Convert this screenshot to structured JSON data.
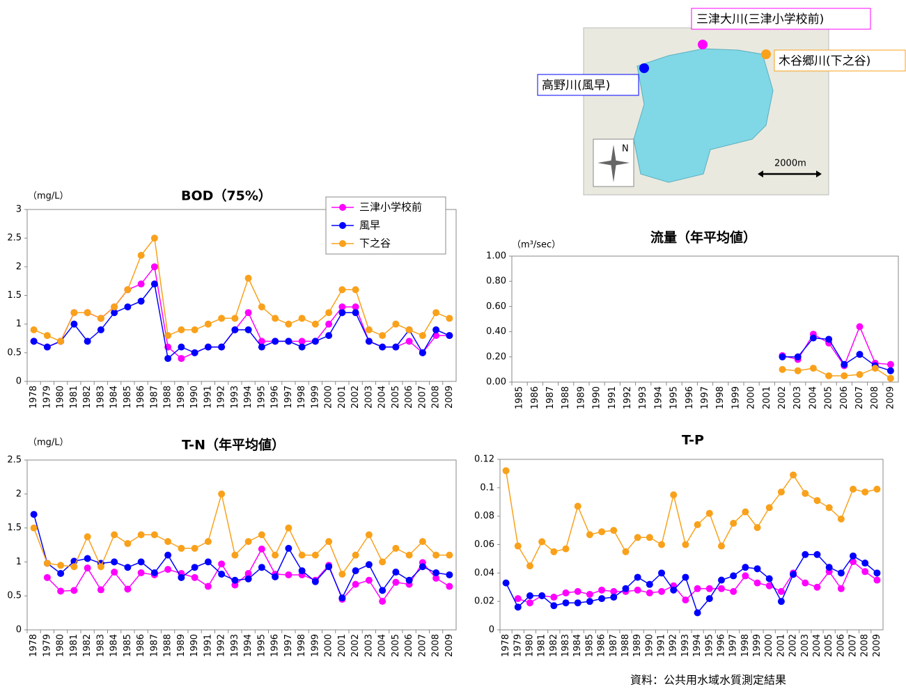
{
  "map": {
    "labels": [
      "三津大川(三津小学校前)",
      "木谷郷川(下之谷)",
      "高野川(風早)"
    ],
    "scale": "2000m",
    "north": "N"
  },
  "source": "資料：公共用水域水質測定結果",
  "chart_data": [
    {
      "type": "line",
      "title": "BOD（75%）",
      "y_label": "（mg/L）",
      "legend": "upper right",
      "categories": [
        "1978",
        "1979",
        "1980",
        "1981",
        "1982",
        "1983",
        "1984",
        "1985",
        "1986",
        "1987",
        "1988",
        "1989",
        "1990",
        "1991",
        "1992",
        "1993",
        "1994",
        "1995",
        "1996",
        "1997",
        "1998",
        "1999",
        "2000",
        "2001",
        "2002",
        "2003",
        "2004",
        "2005",
        "2006",
        "2007",
        "2008",
        "2009"
      ],
      "ylim": [
        0,
        3
      ],
      "yticks": [
        0,
        0.5,
        1,
        1.5,
        2,
        2.5,
        3
      ],
      "series": [
        {
          "name": "三津小学校前",
          "color": "#ff00ff",
          "values": [
            0.7,
            0.6,
            0.7,
            1.2,
            1.2,
            1.1,
            1.3,
            1.6,
            1.7,
            2.0,
            0.6,
            0.4,
            0.5,
            0.6,
            0.6,
            0.9,
            1.2,
            0.7,
            0.7,
            0.7,
            0.7,
            0.7,
            1.0,
            1.3,
            1.3,
            0.7,
            0.6,
            0.6,
            0.7,
            0.5,
            0.8,
            0.8
          ]
        },
        {
          "name": "風早",
          "color": "#0000ff",
          "values": [
            0.7,
            0.6,
            0.7,
            1.0,
            0.7,
            0.9,
            1.2,
            1.3,
            1.4,
            1.7,
            0.4,
            0.6,
            0.5,
            0.6,
            0.6,
            0.9,
            0.9,
            0.6,
            0.7,
            0.7,
            0.6,
            0.7,
            0.8,
            1.2,
            1.2,
            0.7,
            0.6,
            0.6,
            0.9,
            0.5,
            0.9,
            0.8
          ]
        },
        {
          "name": "下之谷",
          "color": "#f9a11b",
          "values": [
            0.9,
            0.8,
            0.7,
            1.2,
            1.2,
            1.1,
            1.3,
            1.6,
            2.2,
            2.5,
            0.8,
            0.9,
            0.9,
            1.0,
            1.1,
            1.1,
            1.8,
            1.3,
            1.1,
            1.0,
            1.1,
            1.0,
            1.2,
            1.6,
            1.6,
            0.9,
            0.8,
            1.0,
            0.9,
            0.8,
            1.2,
            1.1
          ]
        }
      ]
    },
    {
      "type": "line",
      "title": "流量（年平均値）",
      "y_label": "（m³/sec）",
      "categories": [
        "1985",
        "1986",
        "1987",
        "1988",
        "1989",
        "1990",
        "1991",
        "1992",
        "1993",
        "1994",
        "1995",
        "1996",
        "1997",
        "1998",
        "1999",
        "2000",
        "2001",
        "2002",
        "2003",
        "2004",
        "2005",
        "2006",
        "2007",
        "2008",
        "2009"
      ],
      "ylim": [
        0,
        1
      ],
      "yticks": [
        {
          "value": 0,
          "label": "0.00"
        },
        {
          "value": 0.2,
          "label": "0.20"
        },
        {
          "value": 0.4,
          "label": "0.40"
        },
        {
          "value": 0.6,
          "label": "0.60"
        },
        {
          "value": 0.8,
          "label": "0.80"
        },
        {
          "value": 1,
          "label": "1.00"
        }
      ],
      "series": [
        {
          "color": "#ff00ff",
          "values": [
            null,
            null,
            null,
            null,
            null,
            null,
            null,
            null,
            null,
            null,
            null,
            null,
            null,
            null,
            null,
            null,
            null,
            0.21,
            0.18,
            0.38,
            0.31,
            0.13,
            0.44,
            0.15,
            0.14
          ]
        },
        {
          "color": "#0000ff",
          "values": [
            null,
            null,
            null,
            null,
            null,
            null,
            null,
            null,
            null,
            null,
            null,
            null,
            null,
            null,
            null,
            null,
            null,
            0.2,
            0.2,
            0.35,
            0.34,
            0.14,
            0.22,
            0.13,
            0.09
          ]
        },
        {
          "color": "#f9a11b",
          "values": [
            null,
            null,
            null,
            null,
            null,
            null,
            null,
            null,
            null,
            null,
            null,
            null,
            null,
            null,
            null,
            null,
            null,
            0.1,
            0.09,
            0.11,
            0.05,
            0.05,
            0.06,
            0.11,
            0.03
          ]
        }
      ]
    },
    {
      "type": "line",
      "title": "T-N（年平均値）",
      "y_label": "（mg/L）",
      "categories": [
        "1978",
        "1979",
        "1980",
        "1981",
        "1982",
        "1983",
        "1984",
        "1985",
        "1986",
        "1987",
        "1988",
        "1989",
        "1990",
        "1991",
        "1992",
        "1993",
        "1994",
        "1995",
        "1996",
        "1997",
        "1998",
        "1999",
        "2000",
        "2001",
        "2002",
        "2003",
        "2004",
        "2005",
        "2006",
        "2007",
        "2008",
        "2009"
      ],
      "ylim": [
        0,
        2.5
      ],
      "yticks": [
        0,
        0.5,
        1,
        1.5,
        2,
        2.5
      ],
      "series": [
        {
          "color": "#ff00ff",
          "values": [
            null,
            0.77,
            0.57,
            0.58,
            0.91,
            0.59,
            0.85,
            0.6,
            0.84,
            0.81,
            0.89,
            0.83,
            0.77,
            0.64,
            0.97,
            0.66,
            0.83,
            1.19,
            0.82,
            0.81,
            0.81,
            0.73,
            0.95,
            0.45,
            0.67,
            0.73,
            0.42,
            0.7,
            0.67,
            0.99,
            0.76,
            0.64
          ]
        },
        {
          "color": "#0000ff",
          "values": [
            1.7,
            0.98,
            0.83,
            1.01,
            1.05,
            0.98,
            1.0,
            0.92,
            1.0,
            0.84,
            1.1,
            0.77,
            0.92,
            1.0,
            0.82,
            0.73,
            0.75,
            0.92,
            0.78,
            1.2,
            0.87,
            0.71,
            0.93,
            0.47,
            0.87,
            0.96,
            0.58,
            0.85,
            0.73,
            0.93,
            0.84,
            0.81
          ]
        },
        {
          "color": "#f9a11b",
          "values": [
            1.5,
            0.98,
            0.95,
            0.93,
            1.37,
            0.93,
            1.4,
            1.27,
            1.4,
            1.4,
            1.3,
            1.2,
            1.2,
            1.3,
            2.0,
            1.1,
            1.3,
            1.4,
            1.1,
            1.5,
            1.1,
            1.1,
            1.3,
            0.82,
            1.1,
            1.4,
            1.0,
            1.2,
            1.1,
            1.3,
            1.1,
            1.1
          ]
        }
      ]
    },
    {
      "type": "line",
      "title": "T-P",
      "categories": [
        "1978",
        "1979",
        "1980",
        "1981",
        "1982",
        "1983",
        "1984",
        "1985",
        "1986",
        "1987",
        "1988",
        "1989",
        "1990",
        "1991",
        "1992",
        "1993",
        "1994",
        "1995",
        "1996",
        "1997",
        "1998",
        "1999",
        "2000",
        "2001",
        "2002",
        "2003",
        "2004",
        "2005",
        "2006",
        "2007",
        "2008",
        "2009"
      ],
      "ylim": [
        0,
        0.12
      ],
      "yticks": [
        0,
        0.02,
        0.04,
        0.06,
        0.08,
        0.1,
        0.12
      ],
      "series": [
        {
          "color": "#ff00ff",
          "values": [
            null,
            0.022,
            0.019,
            0.024,
            0.023,
            0.026,
            0.027,
            0.025,
            0.028,
            0.027,
            0.027,
            0.028,
            0.026,
            0.027,
            0.031,
            0.021,
            0.029,
            0.029,
            0.029,
            0.027,
            0.038,
            0.033,
            0.031,
            0.027,
            0.04,
            0.033,
            0.03,
            0.041,
            0.029,
            0.048,
            0.041,
            0.035
          ]
        },
        {
          "color": "#0000ff",
          "values": [
            0.033,
            0.016,
            0.024,
            0.024,
            0.017,
            0.019,
            0.019,
            0.02,
            0.022,
            0.023,
            0.029,
            0.037,
            0.032,
            0.04,
            0.028,
            0.037,
            0.012,
            0.022,
            0.035,
            0.038,
            0.044,
            0.043,
            0.036,
            0.02,
            0.039,
            0.053,
            0.053,
            0.044,
            0.04,
            0.052,
            0.047,
            0.04
          ]
        },
        {
          "color": "#f9a11b",
          "values": [
            0.112,
            0.059,
            0.045,
            0.062,
            0.055,
            0.057,
            0.087,
            0.067,
            0.069,
            0.07,
            0.055,
            0.065,
            0.065,
            0.06,
            0.095,
            0.06,
            0.074,
            0.082,
            0.059,
            0.075,
            0.083,
            0.072,
            0.086,
            0.097,
            0.109,
            0.096,
            0.091,
            0.086,
            0.078,
            0.099,
            0.097,
            0.099
          ]
        }
      ]
    }
  ]
}
